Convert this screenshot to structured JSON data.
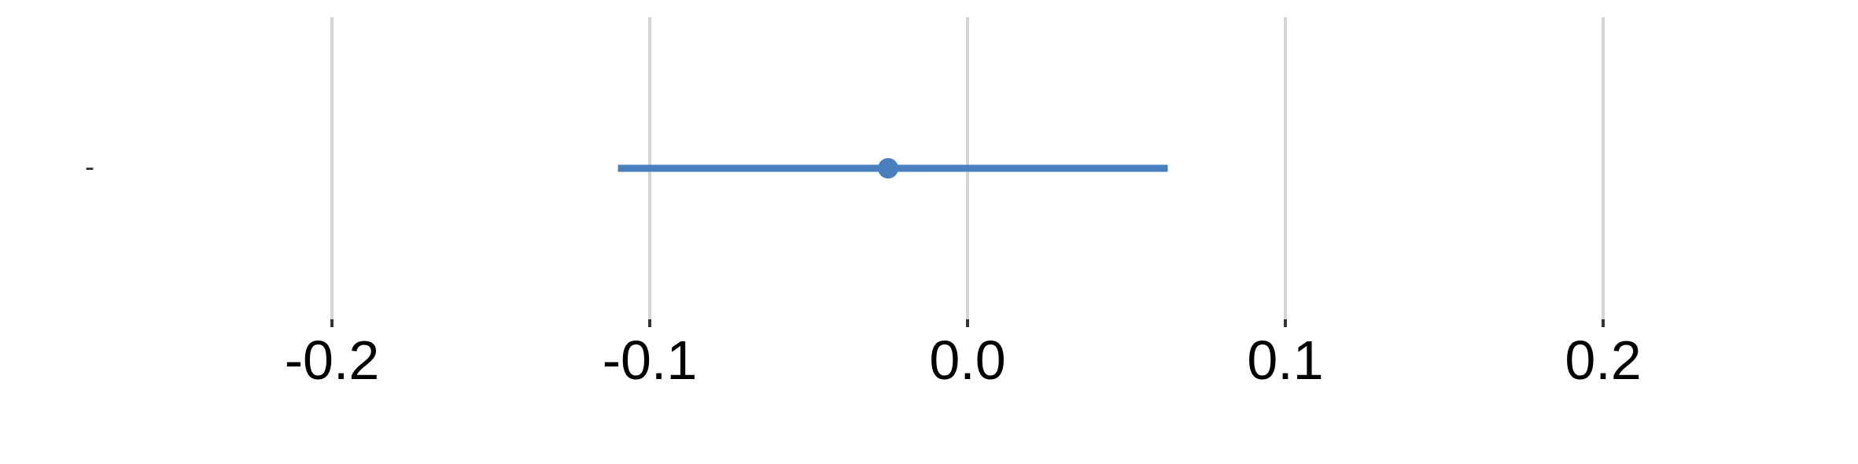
{
  "chart_data": {
    "type": "scatter",
    "title": "",
    "xlabel": "",
    "ylabel": "",
    "xlim": [
      -0.3,
      0.28
    ],
    "grid": true,
    "legend": "none",
    "x_ticks": [
      -0.2,
      -0.1,
      0.0,
      0.1,
      0.2
    ],
    "x_tick_labels": [
      "-0.2",
      "-0.1",
      "0.0",
      "0.1",
      "0.2"
    ],
    "rows": [
      {
        "label": "-",
        "estimate": -0.025,
        "ci_low": -0.11,
        "ci_high": 0.063
      }
    ],
    "colors": {
      "series": "#4a7fbf",
      "grid": "#d4d4d4"
    }
  }
}
